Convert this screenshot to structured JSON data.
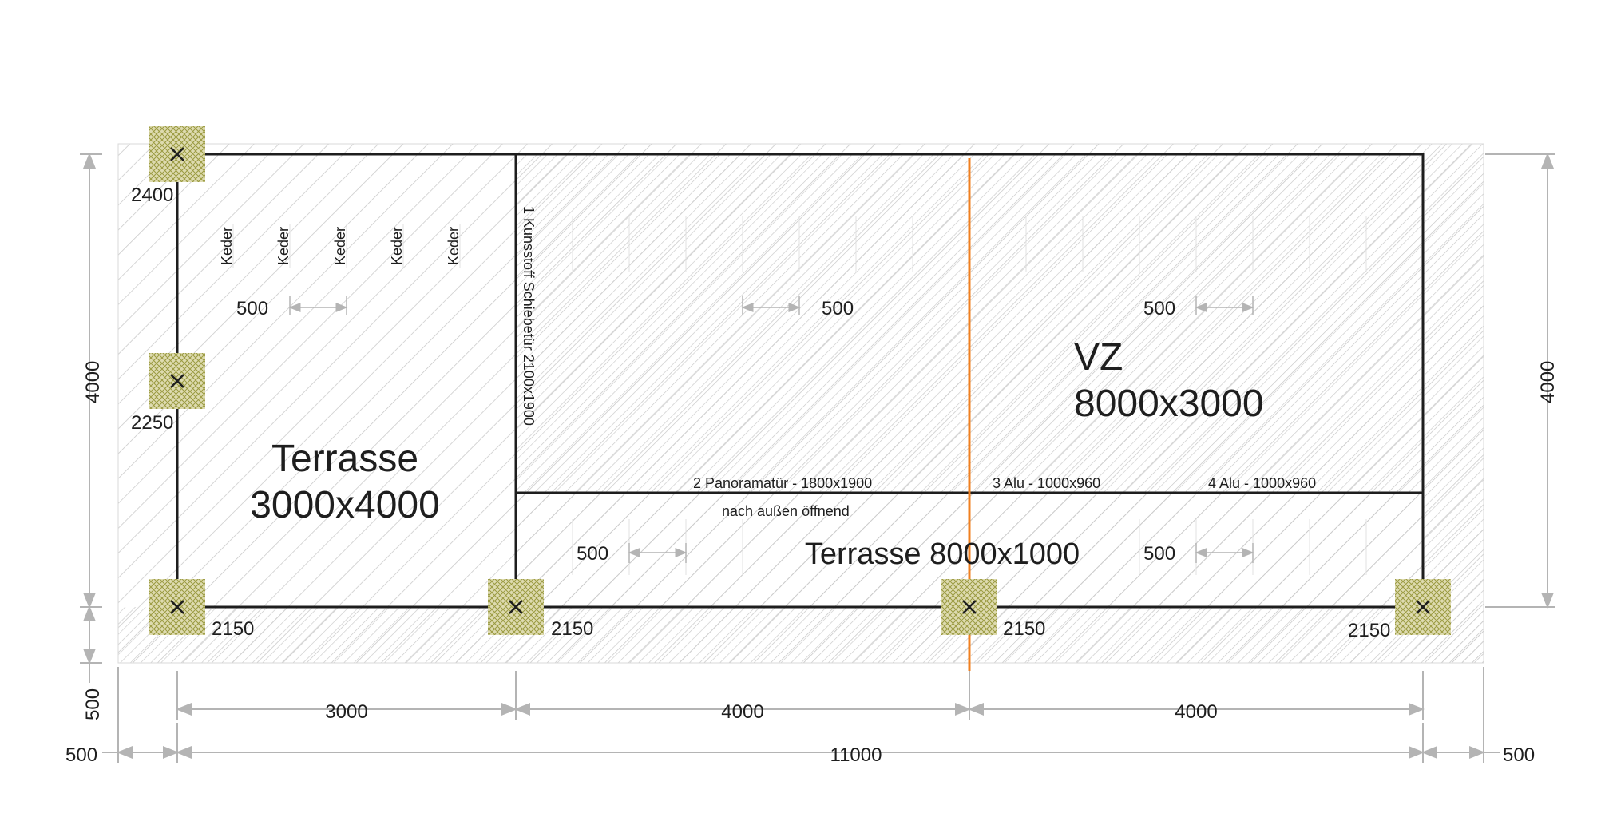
{
  "labels": {
    "terrasse_main": [
      "Terrasse",
      "3000x4000"
    ],
    "vz": [
      "VZ",
      "8000x3000"
    ],
    "terrasse_front": "Terrasse 8000x1000",
    "door_1": "1 Kunsstoff Schiebetür 2100x1900",
    "door_2": "2 Panoramatür - 1800x1900",
    "door_2_note": "nach außen öffnend",
    "door_3": "3 Alu - 1000x960",
    "door_4": "4 Alu - 1000x960",
    "keder": [
      "Keder",
      "Keder",
      "Keder",
      "Keder",
      "Keder"
    ]
  },
  "post_heights": {
    "top_left": "2400",
    "mid_left": "2250",
    "bottom_1": "2150",
    "bottom_2": "2150",
    "bottom_3": "2150",
    "bottom_4": "2150"
  },
  "spacing_labels": {
    "terrasse": "500",
    "vz_left": "500",
    "vz_right": "500",
    "front_left": "500",
    "front_right": "500"
  },
  "dimensions": {
    "left_height": "4000",
    "right_height": "4000",
    "bottom_overhang": "500",
    "segment_1": "3000",
    "segment_2": "4000",
    "segment_3": "4000",
    "overall": "11000",
    "left_overhang": "500",
    "right_overhang": "500"
  },
  "colors": {
    "outline": "#1e1e1e",
    "dimension_line": "#b4b4b4",
    "hatch": "#c8c8c8",
    "post_fill": "#c9c98a",
    "axis_line": "#f08020"
  }
}
